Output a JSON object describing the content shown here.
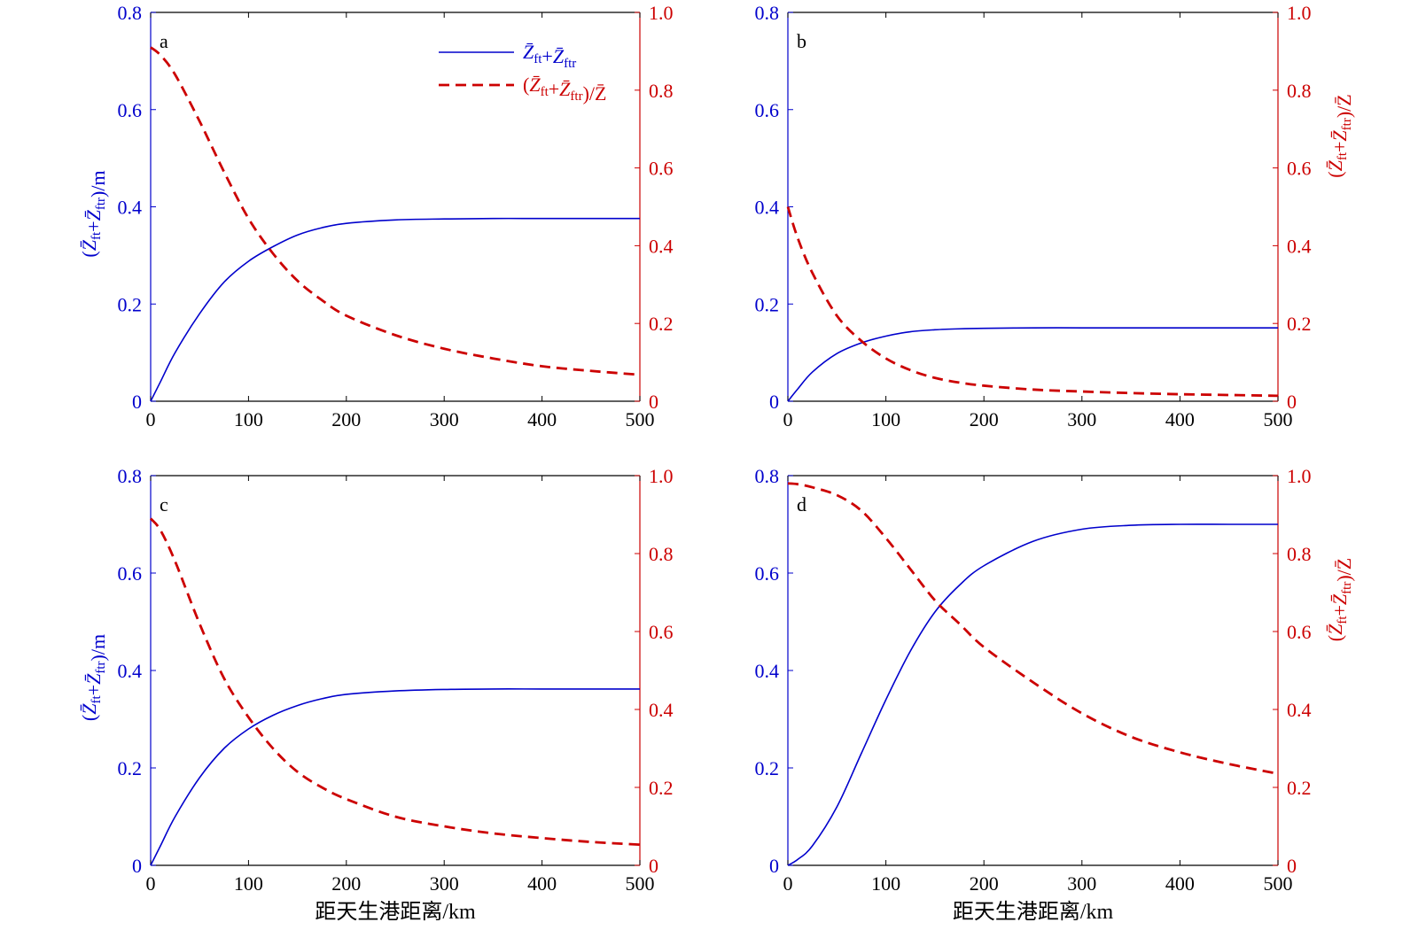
{
  "chart_data": [
    {
      "type": "line",
      "panel": "a",
      "x": [
        0,
        10,
        25,
        50,
        75,
        100,
        125,
        150,
        175,
        200,
        250,
        300,
        350,
        400,
        450,
        500
      ],
      "xlim": [
        0,
        500
      ],
      "xticks": [
        "0",
        "100",
        "200",
        "300",
        "400",
        "500"
      ],
      "ylim_left": [
        0,
        0.8
      ],
      "yticks_left": [
        "0",
        "0.2",
        "0.4",
        "0.6",
        "0.8"
      ],
      "ylim_right": [
        0,
        1.0
      ],
      "yticks_right": [
        "0",
        "0.2",
        "0.4",
        "0.6",
        "0.8",
        "1.0"
      ],
      "ylabel_left": "(Z̄ft+Z̄ftr)/m",
      "ylabel_right": "",
      "xlabel": "",
      "series": [
        {
          "name": "Z̄ft+Z̄ftr",
          "axis": "left",
          "color": "#0000cc",
          "style": "solid",
          "values": [
            0.0,
            0.04,
            0.1,
            0.18,
            0.245,
            0.288,
            0.318,
            0.342,
            0.357,
            0.366,
            0.373,
            0.375,
            0.376,
            0.376,
            0.376,
            0.376
          ]
        },
        {
          "name": "(Z̄ft+Z̄ftr)/Z̄",
          "axis": "right",
          "color": "#cc0000",
          "style": "dashed",
          "values": [
            0.91,
            0.89,
            0.84,
            0.72,
            0.59,
            0.47,
            0.38,
            0.31,
            0.26,
            0.22,
            0.17,
            0.135,
            0.11,
            0.09,
            0.078,
            0.068
          ]
        }
      ]
    },
    {
      "type": "line",
      "panel": "b",
      "x": [
        0,
        10,
        25,
        50,
        75,
        100,
        125,
        150,
        175,
        200,
        250,
        300,
        350,
        400,
        450,
        500
      ],
      "xlim": [
        0,
        500
      ],
      "xticks": [
        "0",
        "100",
        "200",
        "300",
        "400",
        "500"
      ],
      "ylim_left": [
        0,
        0.8
      ],
      "yticks_left": [
        "0",
        "0.2",
        "0.4",
        "0.6",
        "0.8"
      ],
      "ylim_right": [
        0,
        1.0
      ],
      "yticks_right": [
        "0",
        "0.2",
        "0.4",
        "0.6",
        "0.8",
        "1.0"
      ],
      "ylabel_left": "",
      "ylabel_right": "(Z̄ft+Z̄ftr)/Z̄",
      "xlabel": "",
      "series": [
        {
          "name": "Z̄ft+Z̄ftr",
          "axis": "left",
          "color": "#0000cc",
          "style": "solid",
          "values": [
            0.0,
            0.025,
            0.06,
            0.098,
            0.12,
            0.134,
            0.143,
            0.147,
            0.149,
            0.15,
            0.151,
            0.151,
            0.151,
            0.151,
            0.151,
            0.151
          ]
        },
        {
          "name": "(Z̄ft+Z̄ftr)/Z̄",
          "axis": "right",
          "color": "#cc0000",
          "style": "dashed",
          "values": [
            0.5,
            0.42,
            0.33,
            0.22,
            0.155,
            0.11,
            0.08,
            0.06,
            0.048,
            0.04,
            0.03,
            0.025,
            0.021,
            0.018,
            0.016,
            0.014
          ]
        }
      ]
    },
    {
      "type": "line",
      "panel": "c",
      "x": [
        0,
        10,
        25,
        50,
        75,
        100,
        125,
        150,
        175,
        200,
        250,
        300,
        350,
        400,
        450,
        500
      ],
      "xlim": [
        0,
        500
      ],
      "xticks": [
        "0",
        "100",
        "200",
        "300",
        "400",
        "500"
      ],
      "ylim_left": [
        0,
        0.8
      ],
      "yticks_left": [
        "0",
        "0.2",
        "0.4",
        "0.6",
        "0.8"
      ],
      "ylim_right": [
        0,
        1.0
      ],
      "yticks_right": [
        "0",
        "0.2",
        "0.4",
        "0.6",
        "0.8",
        "1.0"
      ],
      "ylabel_left": "(Z̄ft+Z̄ftr)/m",
      "ylabel_right": "",
      "xlabel": "距天生港距离/km",
      "series": [
        {
          "name": "Z̄ft+Z̄ftr",
          "axis": "left",
          "color": "#0000cc",
          "style": "solid",
          "values": [
            0.0,
            0.04,
            0.1,
            0.18,
            0.24,
            0.28,
            0.308,
            0.328,
            0.342,
            0.351,
            0.358,
            0.361,
            0.362,
            0.362,
            0.362,
            0.362
          ]
        },
        {
          "name": "(Z̄ft+Z̄ftr)/Z̄",
          "axis": "right",
          "color": "#cc0000",
          "style": "dashed",
          "values": [
            0.89,
            0.86,
            0.78,
            0.62,
            0.48,
            0.38,
            0.3,
            0.24,
            0.2,
            0.17,
            0.125,
            0.1,
            0.082,
            0.07,
            0.06,
            0.053
          ]
        }
      ]
    },
    {
      "type": "line",
      "panel": "d",
      "x": [
        0,
        10,
        25,
        50,
        75,
        100,
        125,
        150,
        175,
        200,
        250,
        300,
        350,
        400,
        450,
        500
      ],
      "xlim": [
        0,
        500
      ],
      "xticks": [
        "0",
        "100",
        "200",
        "300",
        "400",
        "500"
      ],
      "ylim_left": [
        0,
        0.8
      ],
      "yticks_left": [
        "0",
        "0.2",
        "0.4",
        "0.6",
        "0.8"
      ],
      "ylim_right": [
        0,
        1.0
      ],
      "yticks_right": [
        "0",
        "0.2",
        "0.4",
        "0.6",
        "0.8",
        "1.0"
      ],
      "ylabel_left": "",
      "ylabel_right": "(Z̄ft+Z̄ftr)/Z̄",
      "xlabel": "距天生港距离/km",
      "series": [
        {
          "name": "Z̄ft+Z̄ftr",
          "axis": "left",
          "color": "#0000cc",
          "style": "solid",
          "values": [
            0.0,
            0.012,
            0.04,
            0.12,
            0.23,
            0.34,
            0.44,
            0.52,
            0.575,
            0.615,
            0.665,
            0.69,
            0.698,
            0.7,
            0.7,
            0.7
          ]
        },
        {
          "name": "(Z̄ft+Z̄ftr)/Z̄",
          "axis": "right",
          "color": "#cc0000",
          "style": "dashed",
          "values": [
            0.98,
            0.978,
            0.97,
            0.95,
            0.91,
            0.84,
            0.76,
            0.68,
            0.62,
            0.56,
            0.47,
            0.39,
            0.33,
            0.29,
            0.26,
            0.235
          ]
        }
      ]
    }
  ],
  "legend": {
    "solid_label": "Z̄ft+Z̄ftr",
    "dashed_label": "(Z̄ft+Z̄ftr)/Z̄"
  }
}
